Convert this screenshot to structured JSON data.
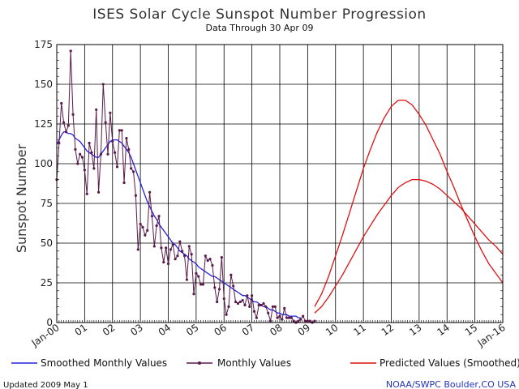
{
  "chart_data": {
    "type": "line",
    "title": "ISES Solar Cycle Sunspot Number Progression",
    "subtitle": "Data Through 30 Apr 09",
    "ylabel": "Sunspot Number",
    "xlabel": "",
    "xlim": [
      "2000-01",
      "2016-01"
    ],
    "ylim": [
      0,
      175
    ],
    "grid": true,
    "legend_position": "bottom",
    "x_tick_labels": [
      "Jan-00",
      "01",
      "02",
      "03",
      "04",
      "05",
      "06",
      "07",
      "08",
      "09",
      "10",
      "11",
      "12",
      "13",
      "14",
      "15",
      "Jan-16"
    ],
    "y_tick_labels": [
      "0",
      "25",
      "50",
      "75",
      "100",
      "125",
      "150",
      "175"
    ],
    "series": [
      {
        "name": "Smoothed Monthly Values",
        "color": "#2222dd",
        "x": [
          "2000-01",
          "2000-02",
          "2000-03",
          "2000-04",
          "2000-05",
          "2000-06",
          "2000-07",
          "2000-08",
          "2000-09",
          "2000-10",
          "2000-11",
          "2000-12",
          "2001-01",
          "2001-02",
          "2001-03",
          "2001-04",
          "2001-05",
          "2001-06",
          "2001-07",
          "2001-08",
          "2001-09",
          "2001-10",
          "2001-11",
          "2001-12",
          "2002-01",
          "2002-02",
          "2002-03",
          "2002-04",
          "2002-05",
          "2002-06",
          "2002-07",
          "2002-08",
          "2002-09",
          "2002-10",
          "2002-11",
          "2002-12",
          "2003-01",
          "2003-02",
          "2003-03",
          "2003-04",
          "2003-05",
          "2003-06",
          "2003-07",
          "2003-08",
          "2003-09",
          "2003-10",
          "2003-11",
          "2003-12",
          "2004-01",
          "2004-02",
          "2004-03",
          "2004-04",
          "2004-05",
          "2004-06",
          "2004-07",
          "2004-08",
          "2004-09",
          "2004-10",
          "2004-11",
          "2004-12",
          "2005-01",
          "2005-02",
          "2005-03",
          "2005-04",
          "2005-05",
          "2005-06",
          "2005-07",
          "2005-08",
          "2005-09",
          "2005-10",
          "2005-11",
          "2005-12",
          "2006-01",
          "2006-02",
          "2006-03",
          "2006-04",
          "2006-05",
          "2006-06",
          "2006-07",
          "2006-08",
          "2006-09",
          "2006-10",
          "2006-11",
          "2006-12",
          "2007-01",
          "2007-02",
          "2007-03",
          "2007-04",
          "2007-05",
          "2007-06",
          "2007-07",
          "2007-08",
          "2007-09",
          "2007-10",
          "2007-11",
          "2007-12",
          "2008-01",
          "2008-02",
          "2008-03",
          "2008-04",
          "2008-05",
          "2008-06",
          "2008-07",
          "2008-08",
          "2008-09",
          "2008-10"
        ],
        "values": [
          112,
          115,
          118,
          120,
          120,
          119,
          119,
          118,
          116,
          115,
          114,
          112,
          110,
          108,
          107,
          106,
          105,
          104,
          104,
          106,
          108,
          110,
          112,
          114,
          115,
          115,
          115,
          114,
          113,
          111,
          109,
          107,
          104,
          100,
          96,
          92,
          88,
          84,
          80,
          76,
          73,
          70,
          67,
          65,
          62,
          60,
          58,
          56,
          54,
          52,
          50,
          49,
          47,
          45,
          44,
          43,
          42,
          40,
          39,
          38,
          37,
          35,
          34,
          33,
          32,
          31,
          30,
          29,
          29,
          28,
          27,
          26,
          25,
          24,
          23,
          22,
          21,
          20,
          19,
          18,
          17,
          17,
          16,
          15,
          14,
          13,
          13,
          12,
          11,
          10,
          10,
          9,
          8,
          8,
          7,
          6,
          6,
          5,
          5,
          5,
          4,
          4,
          4,
          4,
          3,
          3
        ]
      },
      {
        "name": "Monthly Values",
        "color": "#5a1a4a",
        "x": [
          "2000-01",
          "2000-02",
          "2000-03",
          "2000-04",
          "2000-05",
          "2000-06",
          "2000-07",
          "2000-08",
          "2000-09",
          "2000-10",
          "2000-11",
          "2000-12",
          "2001-01",
          "2001-02",
          "2001-03",
          "2001-04",
          "2001-05",
          "2001-06",
          "2001-07",
          "2001-08",
          "2001-09",
          "2001-10",
          "2001-11",
          "2001-12",
          "2002-01",
          "2002-02",
          "2002-03",
          "2002-04",
          "2002-05",
          "2002-06",
          "2002-07",
          "2002-08",
          "2002-09",
          "2002-10",
          "2002-11",
          "2002-12",
          "2003-01",
          "2003-02",
          "2003-03",
          "2003-04",
          "2003-05",
          "2003-06",
          "2003-07",
          "2003-08",
          "2003-09",
          "2003-10",
          "2003-11",
          "2003-12",
          "2004-01",
          "2004-02",
          "2004-03",
          "2004-04",
          "2004-05",
          "2004-06",
          "2004-07",
          "2004-08",
          "2004-09",
          "2004-10",
          "2004-11",
          "2004-12",
          "2005-01",
          "2005-02",
          "2005-03",
          "2005-04",
          "2005-05",
          "2005-06",
          "2005-07",
          "2005-08",
          "2005-09",
          "2005-10",
          "2005-11",
          "2005-12",
          "2006-01",
          "2006-02",
          "2006-03",
          "2006-04",
          "2006-05",
          "2006-06",
          "2006-07",
          "2006-08",
          "2006-09",
          "2006-10",
          "2006-11",
          "2006-12",
          "2007-01",
          "2007-02",
          "2007-03",
          "2007-04",
          "2007-05",
          "2007-06",
          "2007-07",
          "2007-08",
          "2007-09",
          "2007-10",
          "2007-11",
          "2007-12",
          "2008-01",
          "2008-02",
          "2008-03",
          "2008-04",
          "2008-05",
          "2008-06",
          "2008-07",
          "2008-08",
          "2008-09",
          "2008-10",
          "2008-11",
          "2008-12",
          "2009-01",
          "2009-02",
          "2009-03",
          "2009-04"
        ],
        "values": [
          90,
          113,
          138,
          126,
          120,
          124,
          171,
          131,
          109,
          100,
          106,
          104,
          96,
          81,
          113,
          107,
          97,
          134,
          82,
          106,
          150,
          126,
          106,
          132,
          114,
          107,
          98,
          121,
          121,
          88,
          116,
          109,
          97,
          95,
          80,
          46,
          62,
          60,
          55,
          58,
          82,
          67,
          48,
          61,
          67,
          47,
          38,
          47,
          37,
          46,
          49,
          40,
          42,
          51,
          45,
          42,
          27,
          48,
          43,
          18,
          31,
          29,
          24,
          24,
          42,
          39,
          40,
          36,
          22,
          13,
          21,
          41,
          15,
          5,
          10,
          30,
          23,
          13,
          12,
          13,
          14,
          11,
          17,
          10,
          17,
          7,
          3,
          11,
          11,
          12,
          10,
          6,
          1,
          10,
          10,
          3,
          4,
          2,
          9,
          3,
          3,
          3,
          1,
          0,
          1,
          2,
          4,
          1,
          1,
          1,
          0,
          1
        ]
      },
      {
        "name": "Predicted Values (Smoothed)",
        "color": "#dd1111",
        "x": [
          "2009-04",
          "2009-07",
          "2009-10",
          "2010-01",
          "2010-04",
          "2010-07",
          "2010-10",
          "2011-01",
          "2011-04",
          "2011-07",
          "2011-10",
          "2012-01",
          "2012-04",
          "2012-07",
          "2012-10",
          "2013-01",
          "2013-04",
          "2013-07",
          "2013-10",
          "2014-01",
          "2014-04",
          "2014-07",
          "2014-10",
          "2015-01",
          "2015-04",
          "2015-07",
          "2015-10",
          "2016-01"
        ],
        "values": [
          10,
          18,
          29,
          42,
          55,
          69,
          83,
          97,
          109,
          120,
          129,
          136,
          140,
          140,
          137,
          131,
          124,
          115,
          106,
          95,
          85,
          74,
          64,
          54,
          45,
          37,
          31,
          25
        ]
      },
      {
        "name": "Predicted Values (Smoothed)",
        "color": "#dd1111",
        "x": [
          "2009-04",
          "2009-07",
          "2009-10",
          "2010-01",
          "2010-04",
          "2010-07",
          "2010-10",
          "2011-01",
          "2011-04",
          "2011-07",
          "2011-10",
          "2012-01",
          "2012-04",
          "2012-07",
          "2012-10",
          "2013-01",
          "2013-04",
          "2013-07",
          "2013-10",
          "2014-01",
          "2014-04",
          "2014-07",
          "2014-10",
          "2015-01",
          "2015-04",
          "2015-07",
          "2015-10",
          "2016-01"
        ],
        "values": [
          6,
          10,
          16,
          23,
          30,
          38,
          46,
          54,
          61,
          68,
          74,
          80,
          85,
          88,
          90,
          90,
          89,
          87,
          84,
          80,
          76,
          72,
          67,
          62,
          57,
          52,
          48,
          43
        ]
      }
    ]
  },
  "legend": {
    "smoothed_label": "Smoothed Monthly Values",
    "monthly_label": "Monthly Values",
    "predicted_label": "Predicted Values (Smoothed)"
  },
  "footer": {
    "updated": "Updated 2009 May  1",
    "credit": "NOAA/SWPC Boulder,CO USA"
  }
}
